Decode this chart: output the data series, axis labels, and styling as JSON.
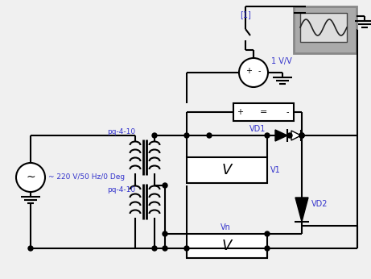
{
  "background_color": "#f0f0f0",
  "line_color": "#000000",
  "blue_label_color": "#3333cc",
  "wire_lw": 1.5,
  "labels": {
    "source": "~ 220 V/50 Hz/0 Deg",
    "pq1": "pq-4-10",
    "pq2": "pq-4-10",
    "vd1": "VD1",
    "vd2": "VD2",
    "v1": "V1",
    "vn": "Vn",
    "vv": "1 V/V",
    "switch": "[1]"
  }
}
